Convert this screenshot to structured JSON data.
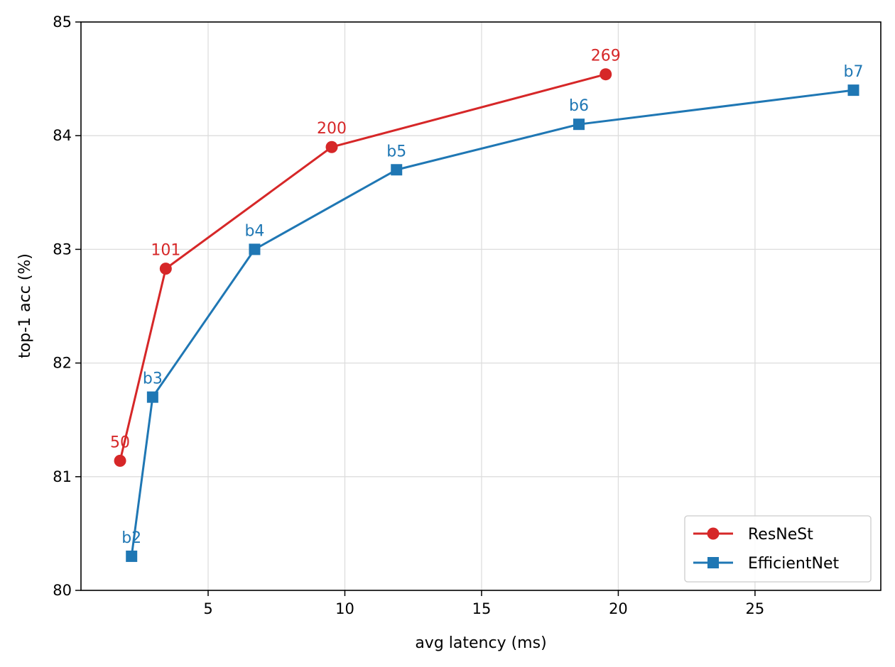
{
  "chart_data": {
    "type": "line",
    "title": "",
    "xlabel": "avg latency (ms)",
    "ylabel": "top-1 acc (%)",
    "xlim": [
      0.35,
      29.6
    ],
    "ylim": [
      80,
      85
    ],
    "xticks": [
      5,
      10,
      15,
      20,
      25
    ],
    "yticks": [
      80,
      81,
      82,
      83,
      84,
      85
    ],
    "grid": true,
    "legend_position": "lower-right",
    "series": [
      {
        "name": "ResNeSt",
        "color": "#d62728",
        "marker": "circle",
        "points": [
          {
            "x": 1.78,
            "y": 81.14,
            "label": "50"
          },
          {
            "x": 3.45,
            "y": 82.83,
            "label": "101"
          },
          {
            "x": 9.52,
            "y": 83.9,
            "label": "200"
          },
          {
            "x": 19.54,
            "y": 84.54,
            "label": "269"
          }
        ]
      },
      {
        "name": "EfficientNet",
        "color": "#1f77b4",
        "marker": "square",
        "points": [
          {
            "x": 2.2,
            "y": 80.3,
            "label": "b2"
          },
          {
            "x": 2.97,
            "y": 81.7,
            "label": "b3"
          },
          {
            "x": 6.7,
            "y": 83.0,
            "label": "b4"
          },
          {
            "x": 11.89,
            "y": 83.7,
            "label": "b5"
          },
          {
            "x": 18.56,
            "y": 84.1,
            "label": "b6"
          },
          {
            "x": 28.6,
            "y": 84.4,
            "label": "b7"
          }
        ]
      }
    ]
  }
}
